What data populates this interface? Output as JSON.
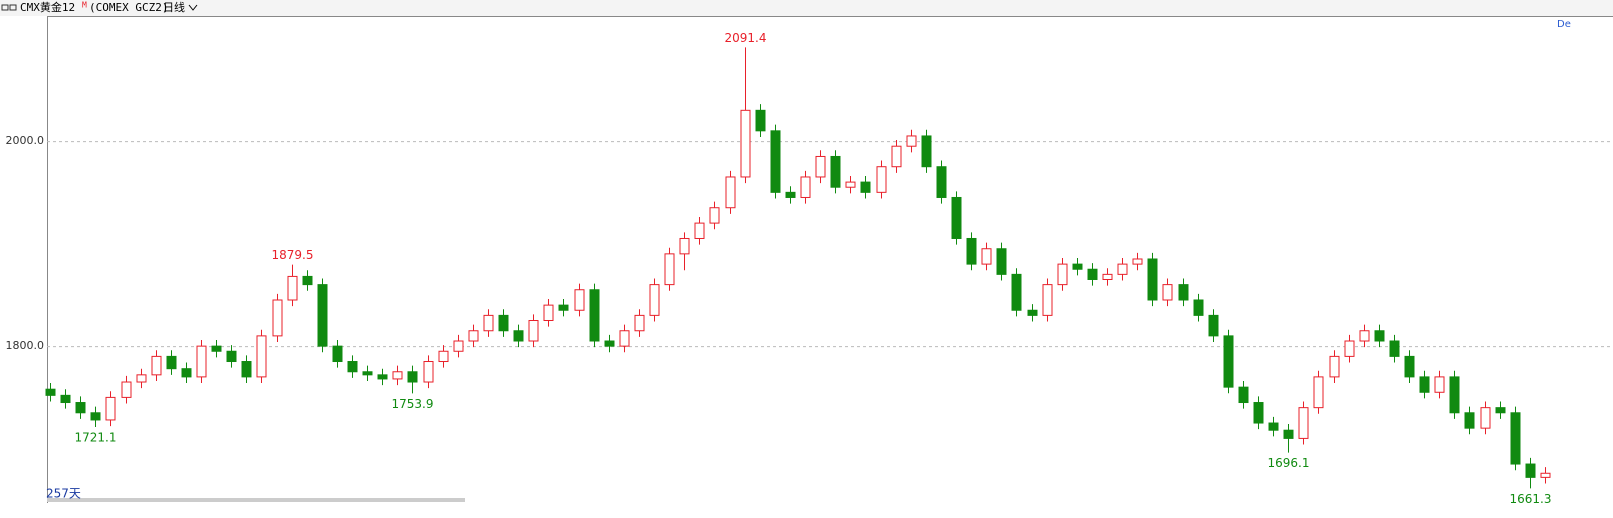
{
  "header": {
    "symbol": "CMX黄金12",
    "symbol_suffix": "M",
    "code": "(COMEX GCZ2)",
    "period": "日线"
  },
  "chart_data": {
    "type": "candlestick",
    "up_color": "#e8202a",
    "down_color": "#108a10",
    "ylim": [
      1647,
      2122
    ],
    "yticks": [
      {
        "value": 1800,
        "label": "1800.0"
      },
      {
        "value": 2000,
        "label": "2000.0"
      }
    ],
    "grid": true,
    "period_label": "257天",
    "corner_label": "De",
    "open": [
      1758,
      1752,
      1745,
      1735,
      1728,
      1750,
      1765,
      1772,
      1790,
      1778,
      1770,
      1800,
      1795,
      1785,
      1770,
      1810,
      1845,
      1868,
      1860,
      1800,
      1785,
      1775,
      1772,
      1768,
      1775,
      1765,
      1785,
      1795,
      1805,
      1815,
      1830,
      1815,
      1805,
      1825,
      1840,
      1835,
      1855,
      1805,
      1800,
      1815,
      1830,
      1860,
      1890,
      1905,
      1920,
      1935,
      1965,
      2030,
      2010,
      1950,
      1945,
      1965,
      1985,
      1955,
      1960,
      1950,
      1975,
      1995,
      2005,
      1975,
      1945,
      1905,
      1880,
      1895,
      1870,
      1835,
      1830,
      1860,
      1880,
      1875,
      1865,
      1870,
      1880,
      1885,
      1845,
      1860,
      1845,
      1830,
      1810,
      1760,
      1745,
      1725,
      1718,
      1710,
      1740,
      1770,
      1790,
      1805,
      1815,
      1805,
      1790,
      1770,
      1755,
      1770,
      1735,
      1720,
      1740,
      1735,
      1685,
      1672
    ],
    "high": [
      1764,
      1758,
      1751,
      1741,
      1756,
      1771,
      1778,
      1796,
      1796,
      1784,
      1806,
      1806,
      1801,
      1791,
      1816,
      1851,
      1879.5,
      1874,
      1866,
      1806,
      1791,
      1781,
      1778,
      1781,
      1781,
      1791,
      1801,
      1811,
      1821,
      1836,
      1836,
      1821,
      1831,
      1846,
      1846,
      1861,
      1861,
      1811,
      1821,
      1836,
      1866,
      1896,
      1911,
      1926,
      1941,
      1971,
      2091.4,
      2036,
      2016,
      1956,
      1971,
      1991,
      1991,
      1966,
      1966,
      1981,
      2001,
      2011,
      2011,
      1981,
      1951,
      1911,
      1901,
      1901,
      1876,
      1841,
      1866,
      1886,
      1886,
      1881,
      1876,
      1886,
      1891,
      1891,
      1866,
      1866,
      1851,
      1836,
      1816,
      1766,
      1751,
      1731,
      1724,
      1746,
      1776,
      1796,
      1811,
      1821,
      1821,
      1811,
      1796,
      1776,
      1776,
      1776,
      1741,
      1746,
      1746,
      1741,
      1691,
      1682
    ],
    "low": [
      1746,
      1739,
      1729,
      1721.1,
      1722,
      1744,
      1759,
      1766,
      1772,
      1764,
      1764,
      1789,
      1779,
      1764,
      1764,
      1804,
      1839,
      1854,
      1794,
      1779,
      1769,
      1766,
      1762,
      1762,
      1753.9,
      1759,
      1779,
      1789,
      1799,
      1809,
      1809,
      1799,
      1799,
      1819,
      1829,
      1829,
      1799,
      1794,
      1794,
      1809,
      1824,
      1854,
      1874,
      1899,
      1914,
      1929,
      1959,
      2004,
      1944,
      1939,
      1939,
      1959,
      1949,
      1949,
      1944,
      1944,
      1969,
      1989,
      1969,
      1939,
      1899,
      1874,
      1874,
      1864,
      1829,
      1824,
      1824,
      1854,
      1869,
      1859,
      1859,
      1864,
      1874,
      1839,
      1839,
      1839,
      1824,
      1804,
      1754,
      1739,
      1719,
      1712,
      1696.1,
      1704,
      1734,
      1764,
      1784,
      1799,
      1799,
      1784,
      1764,
      1749,
      1749,
      1729,
      1714,
      1714,
      1729,
      1679,
      1661.3,
      1666
    ],
    "close": [
      1752,
      1745,
      1735,
      1728,
      1750,
      1765,
      1772,
      1790,
      1778,
      1770,
      1800,
      1795,
      1785,
      1770,
      1810,
      1845,
      1868,
      1860,
      1800,
      1785,
      1775,
      1772,
      1768,
      1775,
      1765,
      1785,
      1795,
      1805,
      1815,
      1830,
      1815,
      1805,
      1825,
      1840,
      1835,
      1855,
      1805,
      1800,
      1815,
      1830,
      1860,
      1890,
      1905,
      1920,
      1935,
      1965,
      2030,
      2010,
      1950,
      1945,
      1965,
      1985,
      1955,
      1960,
      1950,
      1975,
      1995,
      2005,
      1975,
      1945,
      1905,
      1880,
      1895,
      1870,
      1835,
      1830,
      1860,
      1880,
      1875,
      1865,
      1870,
      1880,
      1885,
      1845,
      1860,
      1845,
      1830,
      1810,
      1760,
      1745,
      1725,
      1718,
      1710,
      1740,
      1770,
      1790,
      1805,
      1815,
      1805,
      1790,
      1770,
      1755,
      1770,
      1735,
      1720,
      1740,
      1735,
      1685,
      1672,
      1676
    ]
  }
}
